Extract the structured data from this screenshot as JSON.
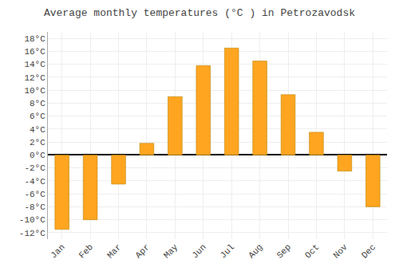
{
  "chart_data": {
    "type": "bar",
    "title": "Average monthly temperatures (°C ) in Petrozavodsk",
    "categories": [
      "Jan",
      "Feb",
      "Mar",
      "Apr",
      "May",
      "Jun",
      "Jul",
      "Aug",
      "Sep",
      "Oct",
      "Nov",
      "Dec"
    ],
    "values": [
      -11.5,
      -10.0,
      -4.5,
      1.8,
      9.0,
      13.8,
      16.5,
      14.5,
      9.3,
      3.5,
      -2.5,
      -8.0
    ],
    "color": "#FFA520",
    "ylim": [
      -13,
      19
    ],
    "yticks": [
      {
        "value": -12,
        "label": "-12°C"
      },
      {
        "value": -10,
        "label": "-10°C"
      },
      {
        "value": -8,
        "label": "-8°C"
      },
      {
        "value": -6,
        "label": "-6°C"
      },
      {
        "value": -4,
        "label": "-4°C"
      },
      {
        "value": -2,
        "label": "-2°C"
      },
      {
        "value": 0,
        "label": "0°C"
      },
      {
        "value": 2,
        "label": "2°C"
      },
      {
        "value": 4,
        "label": "4°C"
      },
      {
        "value": 6,
        "label": "6°C"
      },
      {
        "value": 8,
        "label": "8°C"
      },
      {
        "value": 10,
        "label": "10°C"
      },
      {
        "value": 12,
        "label": "12°C"
      },
      {
        "value": 14,
        "label": "14°C"
      },
      {
        "value": 16,
        "label": "16°C"
      },
      {
        "value": 18,
        "label": "18°C"
      }
    ],
    "grid": true
  }
}
